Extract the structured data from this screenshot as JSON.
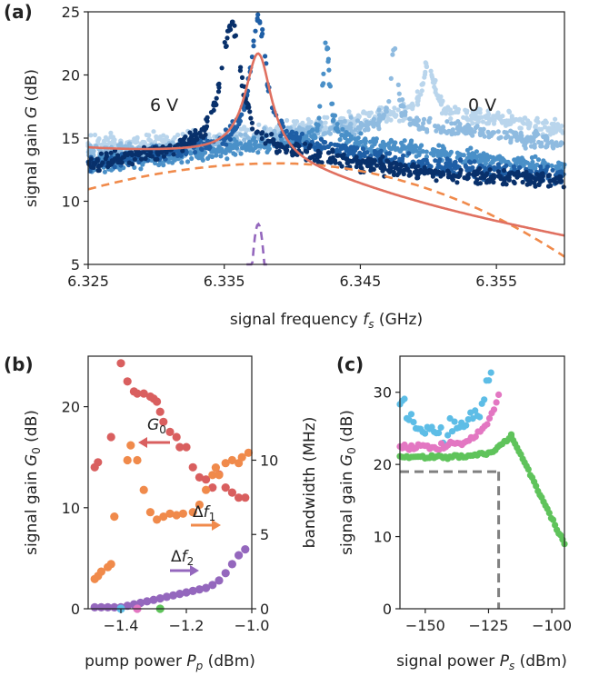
{
  "chart_data": [
    {
      "panel_label": "(a)",
      "type": "scatter",
      "xlabel": "signal frequency f_s (GHz)",
      "ylabel": "signal gain G (dB)",
      "xlim": [
        6.325,
        6.36
      ],
      "ylim": [
        5,
        25
      ],
      "x_ticks": [
        "6.325",
        "6.335",
        "6.345",
        "6.355"
      ],
      "y_ticks": [
        "5",
        "10",
        "15",
        "20",
        "25"
      ],
      "annotations": [
        "6 V",
        "0 V"
      ],
      "series": [
        {
          "label": "6 V",
          "color": "#08306b",
          "peak_x": 6.3355,
          "peak_y": 24.0,
          "width": 0.0009,
          "base": 11.8,
          "slope": -0.09
        },
        {
          "label": "",
          "color": "#1f5fa6",
          "peak_x": 6.3375,
          "peak_y": 24.5,
          "width": 0.0007,
          "base": 12.2,
          "slope": -0.07
        },
        {
          "label": "",
          "color": "#4a90c8",
          "peak_x": 6.3425,
          "peak_y": 22.5,
          "width": 0.0003,
          "base": 12.5,
          "slope": -0.04
        },
        {
          "label": "",
          "color": "#8fbbe0",
          "peak_x": 6.3475,
          "peak_y": 22.5,
          "width": 0.0003,
          "base": 13.8,
          "slope": -0.02
        },
        {
          "label": "0 V",
          "color": "#b9d5ec",
          "peak_x": 6.35,
          "peak_y": 21.0,
          "width": 0.0005,
          "base": 14.6,
          "slope": -0.01
        }
      ],
      "fit_solid": {
        "color": "#e07060",
        "peak_x": 6.3375,
        "peak_y": 21.5
      },
      "fit_dashed": {
        "color": "#f08a4b",
        "peak_x": 6.339,
        "peak_y": 13.0
      },
      "fit_dashed_narrow": {
        "color": "#9467bd",
        "peak_x": 6.3375,
        "peak_y": 8.2
      }
    },
    {
      "panel_label": "(b)",
      "type": "scatter",
      "xlabel": "pump power P_p (dBm)",
      "ylabel": "signal gain G_0 (dB)",
      "ylabel_right": "bandwidth (MHz)",
      "xlim": [
        -1.5,
        -1.0
      ],
      "ylim": [
        0,
        25
      ],
      "ylim_right": [
        0,
        17
      ],
      "x_ticks": [
        "-1.4",
        "-1.2",
        "-1.0"
      ],
      "y_ticks": [
        "0",
        "10",
        "20"
      ],
      "y_ticks_right": [
        "0",
        "5",
        "10"
      ],
      "annotations": [
        "G_0",
        "Δf_1",
        "Δf_2"
      ],
      "series": [
        {
          "name": "G_0",
          "axis": "left",
          "color": "#d95f5f",
          "x": [
            -1.48,
            -1.47,
            -1.43,
            -1.4,
            -1.38,
            -1.36,
            -1.35,
            -1.33,
            -1.31,
            -1.3,
            -1.29,
            -1.28,
            -1.27,
            -1.25,
            -1.23,
            -1.22,
            -1.2,
            -1.18,
            -1.16,
            -1.14,
            -1.12,
            -1.1,
            -1.08,
            -1.06,
            -1.04,
            -1.02
          ],
          "y": [
            14,
            14.5,
            17,
            24.3,
            22.5,
            21.5,
            21.3,
            21.3,
            21,
            20.8,
            20.5,
            19.5,
            18.5,
            17.5,
            17,
            16,
            16,
            14,
            13,
            12.8,
            12,
            13.3,
            12,
            11.5,
            11,
            11
          ]
        },
        {
          "name": "Δf_1",
          "axis": "right",
          "color": "#f08a4b",
          "x": [
            -1.48,
            -1.47,
            -1.46,
            -1.44,
            -1.43,
            -1.42,
            -1.38,
            -1.37,
            -1.35,
            -1.33,
            -1.31,
            -1.29,
            -1.27,
            -1.25,
            -1.23,
            -1.21,
            -1.18,
            -1.16,
            -1.14,
            -1.12,
            -1.11,
            -1.1,
            -1.08,
            -1.06,
            -1.04,
            -1.03,
            -1.01
          ],
          "y": [
            2,
            2.2,
            2.5,
            2.8,
            3.0,
            6.2,
            10,
            11,
            10,
            8,
            6.5,
            6,
            6.2,
            6.4,
            6.3,
            6.4,
            6.5,
            7,
            8,
            9,
            9.5,
            9,
            9.8,
            10,
            9.8,
            10.2,
            10.5
          ]
        },
        {
          "name": "Δf_2",
          "axis": "right",
          "color": "#9467bd",
          "x": [
            -1.48,
            -1.46,
            -1.44,
            -1.42,
            -1.4,
            -1.38,
            -1.36,
            -1.34,
            -1.32,
            -1.3,
            -1.28,
            -1.26,
            -1.24,
            -1.22,
            -1.2,
            -1.18,
            -1.16,
            -1.14,
            -1.12,
            -1.1,
            -1.08,
            -1.06,
            -1.04,
            -1.02
          ],
          "y": [
            0.1,
            0.1,
            0.1,
            0.1,
            0.1,
            0.2,
            0.3,
            0.4,
            0.5,
            0.6,
            0.7,
            0.8,
            0.9,
            1.0,
            1.1,
            1.2,
            1.3,
            1.4,
            1.6,
            1.9,
            2.4,
            3.0,
            3.6,
            4.0
          ]
        },
        {
          "name": "",
          "axis": "left",
          "color": "#5dbde6",
          "x": [
            -1.4
          ],
          "y": [
            0
          ]
        },
        {
          "name": "",
          "axis": "left",
          "color": "#e377c2",
          "x": [
            -1.35
          ],
          "y": [
            0
          ]
        },
        {
          "name": "",
          "axis": "left",
          "color": "#5fc35b",
          "x": [
            -1.28
          ],
          "y": [
            0
          ]
        }
      ]
    },
    {
      "panel_label": "(c)",
      "type": "scatter",
      "xlabel": "signal power P_s (dBm)",
      "ylabel": "signal gain G_0 (dB)",
      "xlim": [
        -160,
        -95
      ],
      "ylim": [
        0,
        35
      ],
      "x_ticks": [
        "-150",
        "-125",
        "-100"
      ],
      "y_ticks": [
        "0",
        "10",
        "20",
        "30"
      ],
      "series": [
        {
          "name": "",
          "color": "#5dbde6",
          "x_start": -160,
          "x_end": -124,
          "y_start": 24.5,
          "y_end": 32.5,
          "noise": 1.2
        },
        {
          "name": "",
          "color": "#e377c2",
          "x_start": -160,
          "x_end": -121,
          "y_start": 22.5,
          "y_end": 29.5,
          "noise": 0.3
        },
        {
          "name": "",
          "color": "#5fc35b",
          "x_start": -160,
          "x_end": -116,
          "y_start": 21.0,
          "y_end": 24.0,
          "noise": 0.2
        }
      ],
      "falloff": {
        "color": "#5fc35b",
        "x_start": -116,
        "y_start": 24.0,
        "x_end": -95,
        "y_end": 9.0
      },
      "reference_lines": {
        "y": 19,
        "x": -121,
        "color": "#808080"
      }
    }
  ]
}
